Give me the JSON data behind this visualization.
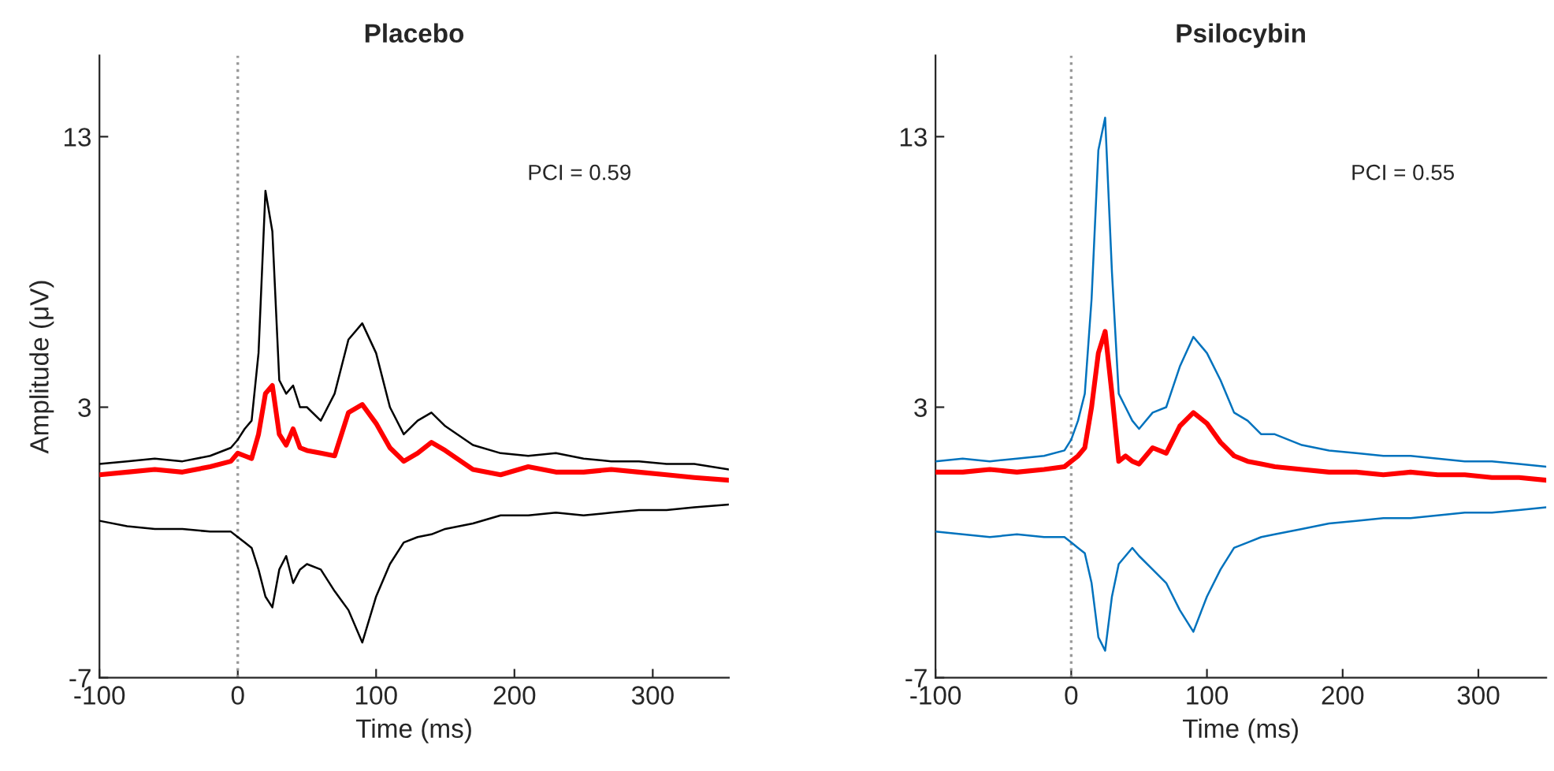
{
  "chart_data": [
    {
      "type": "line",
      "title": "Placebo",
      "xlabel": "Time (ms)",
      "ylabel": "Amplitude (μV)",
      "xlim": [
        -100,
        355
      ],
      "ylim": [
        -7,
        16
      ],
      "xticks": [
        -100,
        0,
        100,
        200,
        300
      ],
      "yticks": [
        -7,
        3,
        13
      ],
      "grid": false,
      "legend": false,
      "line_style": "solid",
      "marker": "none",
      "x": [
        -100,
        -80,
        -60,
        -40,
        -20,
        -5,
        0,
        5,
        10,
        15,
        20,
        25,
        30,
        35,
        40,
        45,
        50,
        60,
        70,
        80,
        90,
        100,
        110,
        120,
        130,
        140,
        150,
        170,
        190,
        210,
        230,
        250,
        270,
        290,
        310,
        330,
        355
      ],
      "ref_lines": [
        {
          "axis": "x",
          "value": 0,
          "color": "#999999",
          "line_style": "dotted"
        }
      ],
      "annotations": [
        "PCI = 0.59"
      ],
      "series": [
        {
          "color": "#000000",
          "values": [
            0.9,
            1.0,
            1.1,
            1.0,
            1.2,
            1.5,
            1.8,
            2.2,
            2.5,
            5.0,
            11.0,
            9.5,
            4.0,
            3.5,
            3.8,
            3.0,
            3.0,
            2.5,
            3.5,
            5.5,
            6.1,
            5.0,
            3.0,
            2.0,
            2.5,
            2.8,
            2.3,
            1.6,
            1.3,
            1.2,
            1.3,
            1.1,
            1.0,
            1.0,
            0.9,
            0.9,
            0.7
          ]
        },
        {
          "color": "#000000",
          "values": [
            -1.2,
            -1.4,
            -1.5,
            -1.5,
            -1.6,
            -1.6,
            -1.8,
            -2.0,
            -2.2,
            -3.0,
            -4.0,
            -4.4,
            -3.0,
            -2.5,
            -3.5,
            -3.0,
            -2.8,
            -3.0,
            -3.8,
            -4.5,
            -5.7,
            -4.0,
            -2.8,
            -2.0,
            -1.8,
            -1.7,
            -1.5,
            -1.3,
            -1.0,
            -1.0,
            -0.9,
            -1.0,
            -0.9,
            -0.8,
            -0.8,
            -0.7,
            -0.6
          ]
        },
        {
          "color": "#ff0000",
          "values": [
            0.5,
            0.6,
            0.7,
            0.6,
            0.8,
            1.0,
            1.3,
            1.2,
            1.1,
            2.0,
            3.5,
            3.8,
            2.0,
            1.6,
            2.2,
            1.5,
            1.4,
            1.3,
            1.2,
            2.8,
            3.1,
            2.4,
            1.5,
            1.0,
            1.3,
            1.7,
            1.4,
            0.7,
            0.5,
            0.8,
            0.6,
            0.6,
            0.7,
            0.6,
            0.5,
            0.4,
            0.3
          ]
        }
      ]
    },
    {
      "type": "line",
      "title": "Psilocybin",
      "xlabel": "Time (ms)",
      "xlim": [
        -100,
        350
      ],
      "ylim": [
        -7,
        16
      ],
      "xticks": [
        -100,
        0,
        100,
        200,
        300
      ],
      "yticks": [
        -7,
        3,
        13
      ],
      "grid": false,
      "legend": false,
      "line_style": "solid",
      "marker": "none",
      "x": [
        -100,
        -80,
        -60,
        -40,
        -20,
        -5,
        0,
        5,
        10,
        15,
        20,
        25,
        30,
        35,
        40,
        45,
        50,
        60,
        70,
        80,
        90,
        100,
        110,
        120,
        130,
        140,
        150,
        170,
        190,
        210,
        230,
        250,
        270,
        290,
        310,
        330,
        350
      ],
      "ref_lines": [
        {
          "axis": "x",
          "value": 0,
          "color": "#999999",
          "line_style": "dotted"
        }
      ],
      "annotations": [
        "PCI = 0.55"
      ],
      "series": [
        {
          "color": "#0072bd",
          "values": [
            1.0,
            1.1,
            1.0,
            1.1,
            1.2,
            1.4,
            1.8,
            2.5,
            3.5,
            7.0,
            12.5,
            13.7,
            8.0,
            3.5,
            3.0,
            2.5,
            2.2,
            2.8,
            3.0,
            4.5,
            5.6,
            5.0,
            4.0,
            2.8,
            2.5,
            2.0,
            2.0,
            1.6,
            1.4,
            1.3,
            1.2,
            1.2,
            1.1,
            1.0,
            1.0,
            0.9,
            0.8
          ]
        },
        {
          "color": "#0072bd",
          "values": [
            -1.6,
            -1.7,
            -1.8,
            -1.7,
            -1.8,
            -1.8,
            -2.0,
            -2.2,
            -2.4,
            -3.5,
            -5.5,
            -6.0,
            -4.0,
            -2.8,
            -2.5,
            -2.2,
            -2.5,
            -3.0,
            -3.5,
            -4.5,
            -5.3,
            -4.0,
            -3.0,
            -2.2,
            -2.0,
            -1.8,
            -1.7,
            -1.5,
            -1.3,
            -1.2,
            -1.1,
            -1.1,
            -1.0,
            -0.9,
            -0.9,
            -0.8,
            -0.7
          ]
        },
        {
          "color": "#ff0000",
          "values": [
            0.6,
            0.6,
            0.7,
            0.6,
            0.7,
            0.8,
            1.0,
            1.2,
            1.5,
            3.0,
            5.0,
            5.8,
            3.5,
            1.0,
            1.2,
            1.0,
            0.9,
            1.5,
            1.3,
            2.3,
            2.8,
            2.4,
            1.7,
            1.2,
            1.0,
            0.9,
            0.8,
            0.7,
            0.6,
            0.6,
            0.5,
            0.6,
            0.5,
            0.5,
            0.4,
            0.4,
            0.3
          ]
        }
      ]
    }
  ]
}
